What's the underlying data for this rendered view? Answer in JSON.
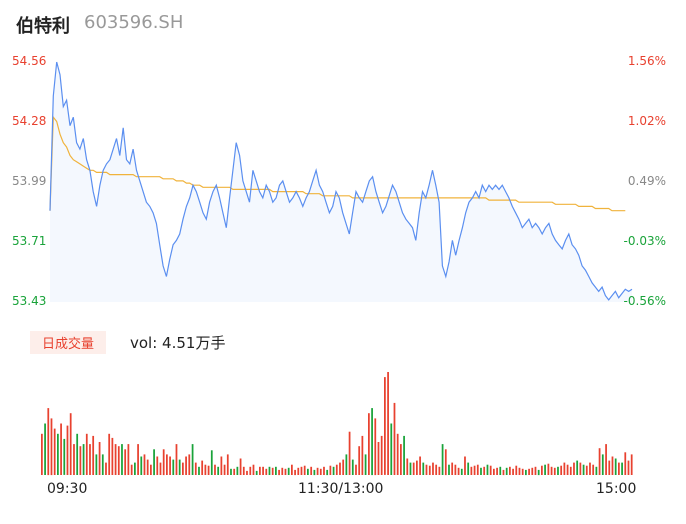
{
  "header": {
    "name": "伯特利",
    "code": "603596.SH"
  },
  "volume_panel": {
    "badge": "日成交量",
    "vol_text": "vol: 4.51万手"
  },
  "colors": {
    "up": "#e8412f",
    "down": "#1aa33a",
    "neutral": "#888888",
    "price_line": "#5b8ff0",
    "avg_line": "#f0b33c",
    "area_fill": "#f4f8fe"
  },
  "chart_data": [
    {
      "type": "line",
      "title": "",
      "x_ticks": [
        "09:30",
        "11:30/13:00",
        "15:00"
      ],
      "y_left_ticks": [
        "54.56",
        "54.28",
        "53.99",
        "53.71",
        "53.43"
      ],
      "y_right_ticks": [
        "1.56%",
        "1.02%",
        "0.49%",
        "-0.03%",
        "-0.56%"
      ],
      "ylim": [
        53.43,
        54.56
      ],
      "series": [
        {
          "role": "price",
          "values": [
            53.86,
            54.4,
            54.56,
            54.5,
            54.35,
            54.38,
            54.26,
            54.3,
            54.18,
            54.15,
            54.2,
            54.1,
            54.05,
            53.95,
            53.88,
            53.98,
            54.05,
            54.08,
            54.1,
            54.15,
            54.2,
            54.12,
            54.25,
            54.1,
            54.08,
            54.15,
            54.05,
            54.0,
            53.95,
            53.9,
            53.88,
            53.85,
            53.8,
            53.7,
            53.6,
            53.55,
            53.63,
            53.7,
            53.72,
            53.75,
            53.82,
            53.88,
            53.92,
            53.98,
            53.95,
            53.9,
            53.85,
            53.82,
            53.9,
            53.95,
            53.98,
            53.92,
            53.85,
            53.78,
            53.92,
            54.05,
            54.18,
            54.12,
            54.0,
            53.95,
            53.9,
            54.05,
            54.0,
            53.95,
            53.92,
            53.98,
            53.95,
            53.9,
            53.92,
            53.98,
            54.0,
            53.95,
            53.9,
            53.92,
            53.95,
            53.92,
            53.88,
            53.92,
            53.95,
            54.0,
            54.05,
            53.98,
            53.95,
            53.9,
            53.85,
            53.88,
            53.95,
            53.92,
            53.85,
            53.8,
            53.75,
            53.85,
            53.95,
            53.92,
            53.9,
            53.95,
            54.0,
            54.02,
            53.95,
            53.9,
            53.85,
            53.88,
            53.93,
            53.98,
            53.95,
            53.9,
            53.85,
            53.82,
            53.8,
            53.78,
            53.72,
            53.85,
            53.95,
            53.92,
            53.98,
            54.05,
            53.98,
            53.9,
            53.6,
            53.55,
            53.62,
            53.72,
            53.65,
            53.72,
            53.78,
            53.85,
            53.9,
            53.92,
            53.95,
            53.92,
            53.98,
            53.95,
            53.98,
            53.96,
            53.98,
            53.96,
            53.98,
            53.95,
            53.92,
            53.88,
            53.85,
            53.82,
            53.78,
            53.8,
            53.82,
            53.78,
            53.8,
            53.78,
            53.75,
            53.78,
            53.8,
            53.75,
            53.72,
            53.7,
            53.68,
            53.72,
            53.75,
            53.7,
            53.68,
            53.65,
            53.6,
            53.58,
            53.55,
            53.52,
            53.5,
            53.48,
            53.5,
            53.46,
            53.44,
            53.46,
            53.48,
            53.45,
            53.47,
            53.49,
            53.48,
            53.49
          ]
        },
        {
          "role": "average",
          "values": [
            53.86,
            54.3,
            54.28,
            54.22,
            54.18,
            54.16,
            54.12,
            54.1,
            54.09,
            54.08,
            54.07,
            54.06,
            54.05,
            54.05,
            54.04,
            54.04,
            54.04,
            54.04,
            54.03,
            54.03,
            54.03,
            54.03,
            54.03,
            54.03,
            54.03,
            54.03,
            54.02,
            54.02,
            54.02,
            54.02,
            54.02,
            54.02,
            54.02,
            54.02,
            54.01,
            54.01,
            54.01,
            54.01,
            54.0,
            54.0,
            54.0,
            53.99,
            53.99,
            53.98,
            53.98,
            53.98,
            53.97,
            53.97,
            53.97,
            53.97,
            53.97,
            53.97,
            53.97,
            53.97,
            53.97,
            53.96,
            53.96,
            53.96,
            53.96,
            53.96,
            53.96,
            53.96,
            53.96,
            53.96,
            53.96,
            53.96,
            53.96,
            53.95,
            53.95,
            53.95,
            53.95,
            53.95,
            53.95,
            53.95,
            53.95,
            53.95,
            53.95,
            53.94,
            53.94,
            53.94,
            53.94,
            53.94,
            53.93,
            53.93,
            53.93,
            53.93,
            53.93,
            53.93,
            53.93,
            53.93,
            53.93,
            53.92,
            53.92,
            53.92,
            53.92,
            53.92,
            53.92,
            53.92,
            53.92,
            53.92,
            53.92,
            53.92,
            53.92,
            53.92,
            53.92,
            53.92,
            53.92,
            53.92,
            53.92,
            53.92,
            53.92,
            53.92,
            53.92,
            53.92,
            53.92,
            53.92,
            53.92,
            53.92,
            53.92,
            53.92,
            53.92,
            53.92,
            53.92,
            53.92,
            53.92,
            53.92,
            53.92,
            53.92,
            53.92,
            53.92,
            53.92,
            53.92,
            53.91,
            53.91,
            53.91,
            53.91,
            53.91,
            53.91,
            53.91,
            53.91,
            53.91,
            53.9,
            53.9,
            53.9,
            53.9,
            53.9,
            53.9,
            53.9,
            53.9,
            53.9,
            53.9,
            53.9,
            53.89,
            53.89,
            53.89,
            53.89,
            53.89,
            53.89,
            53.89,
            53.88,
            53.88,
            53.88,
            53.88,
            53.88,
            53.87,
            53.87,
            53.87,
            53.87,
            53.87,
            53.86,
            53.86,
            53.86,
            53.86,
            53.86
          ]
        }
      ]
    },
    {
      "type": "bar",
      "title": "",
      "values": [
        40,
        50,
        65,
        55,
        45,
        40,
        50,
        35,
        48,
        60,
        30,
        40,
        28,
        30,
        40,
        30,
        38,
        20,
        32,
        20,
        12,
        40,
        36,
        30,
        28,
        30,
        25,
        30,
        10,
        12,
        30,
        18,
        20,
        15,
        10,
        25,
        18,
        12,
        25,
        20,
        18,
        15,
        30,
        15,
        12,
        18,
        20,
        30,
        12,
        8,
        14,
        10,
        9,
        24,
        10,
        8,
        18,
        10,
        20,
        6,
        6,
        8,
        16,
        8,
        4,
        8,
        10,
        4,
        8,
        8,
        6,
        8,
        7,
        8,
        5,
        7,
        6,
        7,
        10,
        5,
        7,
        8,
        9,
        6,
        8,
        5,
        7,
        6,
        8,
        5,
        9,
        8,
        10,
        12,
        15,
        20,
        42,
        15,
        10,
        28,
        38,
        20,
        60,
        65,
        55,
        32,
        38,
        95,
        100,
        50,
        70,
        40,
        30,
        38,
        16,
        12,
        12,
        14,
        18,
        12,
        10,
        9,
        12,
        10,
        8,
        30,
        25,
        10,
        12,
        10,
        7,
        6,
        18,
        12,
        8,
        9,
        10,
        7,
        8,
        10,
        9,
        6,
        7,
        8,
        5,
        7,
        8,
        6,
        9,
        7,
        6,
        5,
        6,
        7,
        8,
        5,
        9,
        10,
        11,
        8,
        7,
        8,
        9,
        12,
        10,
        8,
        12,
        14,
        12,
        10,
        9,
        12,
        10,
        8,
        26,
        20,
        30,
        14,
        18,
        16,
        12,
        12,
        22,
        14,
        20
      ],
      "colors_pattern": "alternating up/down per minute"
    }
  ]
}
